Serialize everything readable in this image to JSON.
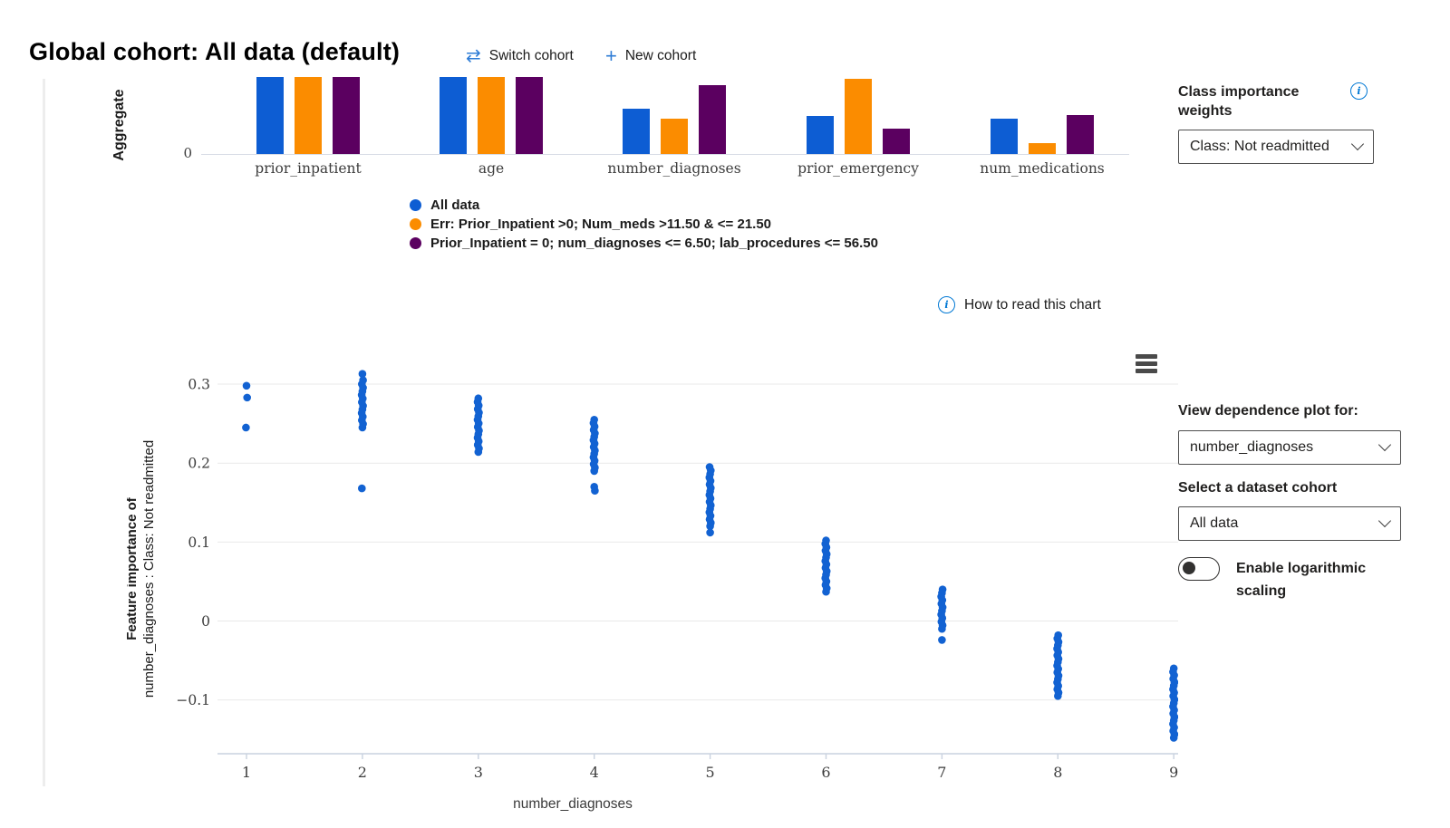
{
  "header": {
    "title": "Global cohort: All data (default)",
    "switch_cohort_label": "Switch cohort",
    "new_cohort_label": "New cohort"
  },
  "class_importance_panel": {
    "label": "Class importance weights",
    "dropdown_value": "Class: Not readmitted"
  },
  "how_to_read_link": {
    "label": "How to read this chart"
  },
  "dependence_panel": {
    "view_label": "View dependence plot for:",
    "feature_dropdown_value": "number_diagnoses",
    "cohort_label": "Select a dataset cohort",
    "cohort_dropdown_value": "All data",
    "toggle_label": "Enable logarithmic scaling",
    "toggle_state": "off"
  },
  "colors": {
    "blue": "#0d5dd3",
    "orange": "#fb8c00",
    "purple": "#5b0060",
    "scatter_blue": "#1262d2",
    "accent": "#0078d4"
  },
  "chart_data": [
    {
      "type": "bar",
      "ylabel": "Aggregate",
      "ytick_labels": [
        "0"
      ],
      "categories": [
        "prior_inpatient",
        "age",
        "number_diagnoses",
        "prior_emergency",
        "num_medications"
      ],
      "series": [
        {
          "name": "All data",
          "color": "#0d5dd3",
          "values": [
            1.0,
            1.0,
            0.59,
            0.49,
            0.46
          ]
        },
        {
          "name": "Err: Prior_Inpatient >0; Num_meds >11.50 & <= 21.50",
          "color": "#fb8c00",
          "values": [
            1.0,
            1.0,
            0.46,
            0.98,
            0.14
          ]
        },
        {
          "name": "Prior_Inpatient = 0; num_diagnoses <= 6.50; lab_procedures <= 56.50",
          "color": "#5b0060",
          "values": [
            1.0,
            1.0,
            0.89,
            0.33,
            0.51
          ]
        }
      ]
    },
    {
      "type": "scatter",
      "xlabel": "number_diagnoses",
      "ylabel_line1": "Feature importance of",
      "ylabel_line2": "number_diagnoses : Class: Not readmitted",
      "series_name": "All data",
      "point_color": "#1262d2",
      "xticks": [
        1,
        2,
        3,
        4,
        5,
        6,
        7,
        8,
        9
      ],
      "yticks": [
        0.3,
        0.2,
        0.1,
        0,
        -0.1
      ],
      "ytick_labels": [
        "0.3",
        "0.2",
        "0.1",
        "0",
        "−0.1"
      ],
      "ylim": [
        -0.175,
        0.345
      ],
      "clusters": [
        {
          "x": 1,
          "points": [
            0.298,
            0.283,
            0.245
          ]
        },
        {
          "x": 2,
          "strip": [
            0.245,
            0.3
          ],
          "points": [
            0.313,
            0.305,
            0.168
          ]
        },
        {
          "x": 3,
          "strip": [
            0.214,
            0.282
          ],
          "points": []
        },
        {
          "x": 4,
          "strip": [
            0.19,
            0.255
          ],
          "points": [
            0.17,
            0.165
          ]
        },
        {
          "x": 5,
          "strip": [
            0.12,
            0.195
          ],
          "points": [
            0.112
          ]
        },
        {
          "x": 6,
          "strip": [
            0.037,
            0.102
          ],
          "points": []
        },
        {
          "x": 7,
          "strip": [
            -0.01,
            0.04
          ],
          "points": [
            -0.024
          ]
        },
        {
          "x": 8,
          "strip": [
            -0.095,
            -0.018
          ],
          "points": []
        },
        {
          "x": 9,
          "strip": [
            -0.148,
            -0.06
          ],
          "points": []
        }
      ]
    }
  ]
}
